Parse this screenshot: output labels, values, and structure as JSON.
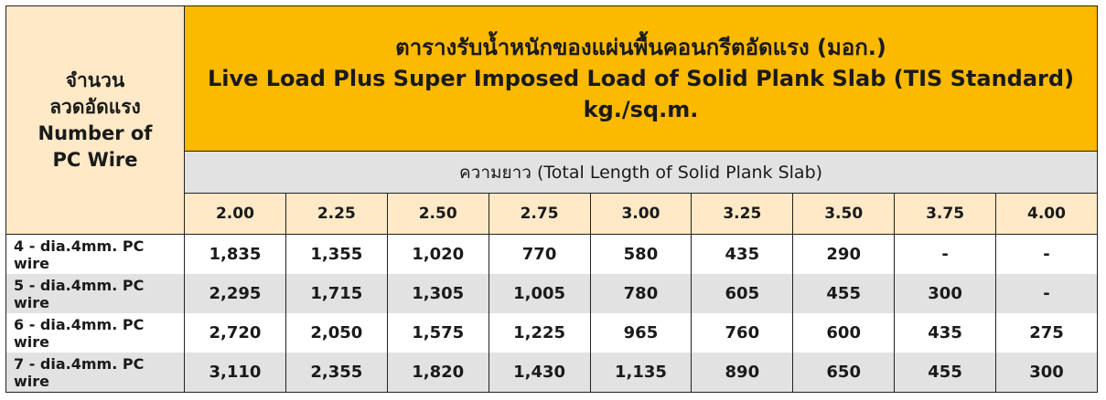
{
  "row_header": {
    "thai_line1": "จำนวน",
    "thai_line2": "ลวดอัดแรง",
    "en_line1": "Number of",
    "en_line2": "PC Wire"
  },
  "title": {
    "thai": "ตารางรับน้ำหนักของแผ่นพื้นคอนกรีตอัดแรง (มอก.)",
    "en": "Live Load Plus Super Imposed Load of Solid Plank Slab (TIS Standard)",
    "unit": "kg./sq.m."
  },
  "subheader": "ความยาว (Total Length of Solid Plank Slab)",
  "lengths": [
    "2.00",
    "2.25",
    "2.50",
    "2.75",
    "3.00",
    "3.25",
    "3.50",
    "3.75",
    "4.00"
  ],
  "rows": [
    {
      "label": "4 - dia.4mm. PC wire",
      "values": [
        "1,835",
        "1,355",
        "1,020",
        "770",
        "580",
        "435",
        "290",
        "-",
        "-"
      ]
    },
    {
      "label": "5 - dia.4mm. PC wire",
      "values": [
        "2,295",
        "1,715",
        "1,305",
        "1,005",
        "780",
        "605",
        "455",
        "300",
        "-"
      ]
    },
    {
      "label": "6 - dia.4mm. PC wire",
      "values": [
        "2,720",
        "2,050",
        "1,575",
        "1,225",
        "965",
        "760",
        "600",
        "435",
        "275"
      ]
    },
    {
      "label": "7 - dia.4mm. PC wire",
      "values": [
        "3,110",
        "2,355",
        "1,820",
        "1,430",
        "1,135",
        "890",
        "650",
        "455",
        "300"
      ]
    }
  ],
  "colors": {
    "title_bg": "#FBB900",
    "header_cream": "#FFE9C6",
    "stripe_grey": "#E2E2E2"
  }
}
